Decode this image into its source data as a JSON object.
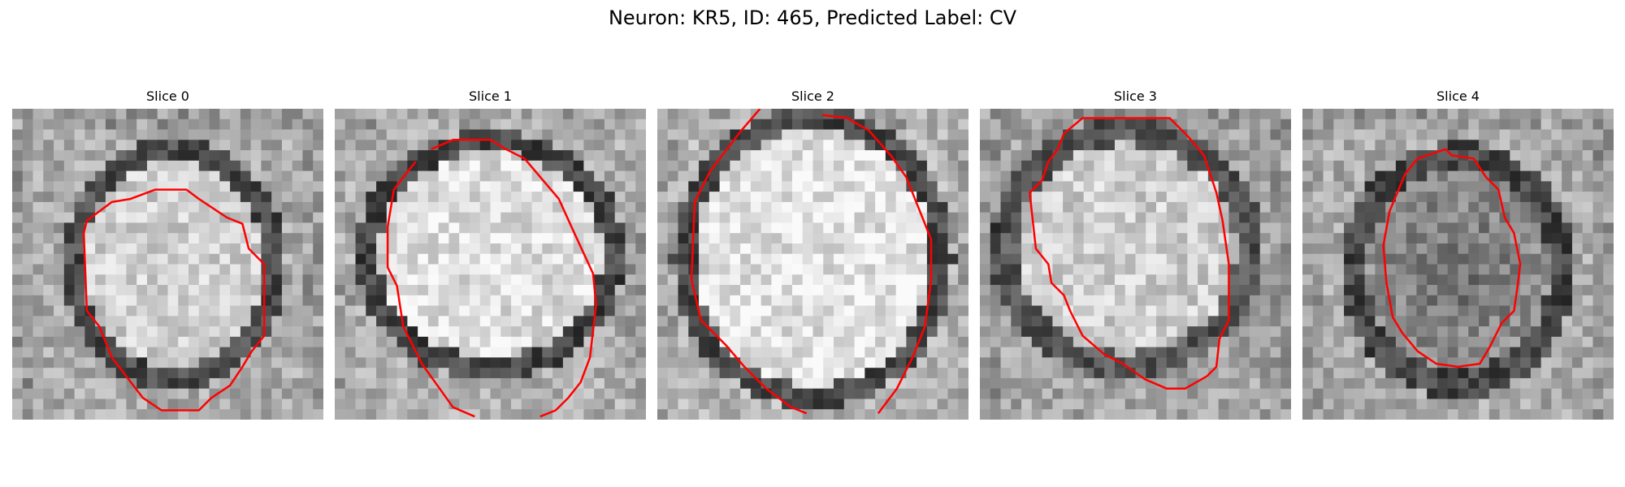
{
  "figure": {
    "title": "Neuron: KR5, ID: 465, Predicted Label: CV"
  },
  "panels": [
    {
      "title": "Slice 0"
    },
    {
      "title": "Slice 1"
    },
    {
      "title": "Slice 2"
    },
    {
      "title": "Slice 3"
    },
    {
      "title": "Slice 4"
    }
  ],
  "colors": {
    "contour": "#ff0000",
    "background": "#ffffff",
    "colormap": "grayscale"
  }
}
